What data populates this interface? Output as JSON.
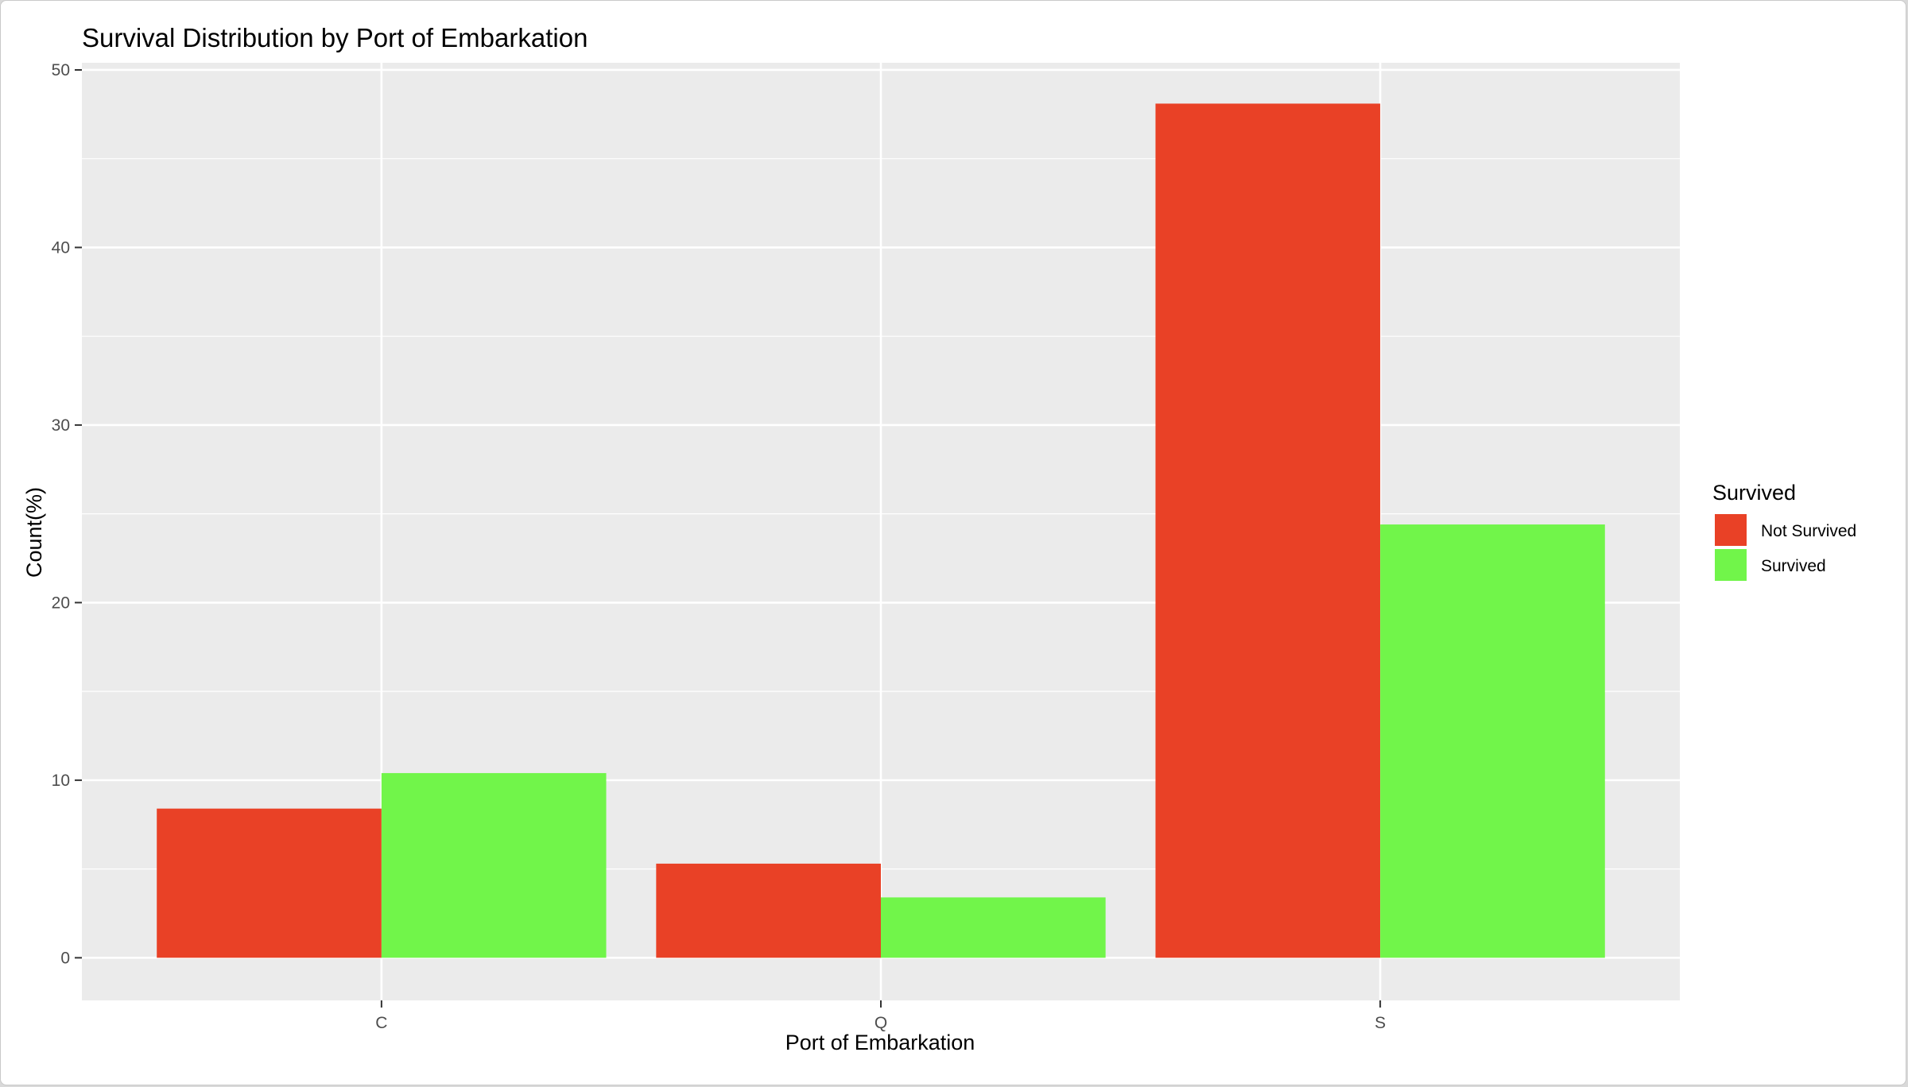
{
  "chart_data": {
    "type": "bar",
    "title": "Survival Distribution by Port of Embarkation",
    "xlabel": "Port of Embarkation",
    "ylabel": "Count(%)",
    "categories": [
      "C",
      "Q",
      "S"
    ],
    "series": [
      {
        "name": "Not Survived",
        "color": "#e94126",
        "values": [
          8.4,
          5.3,
          48.1
        ]
      },
      {
        "name": "Survived",
        "color": "#71f54a",
        "values": [
          10.4,
          3.4,
          24.4
        ]
      }
    ],
    "ylim": [
      -2.4,
      50.4
    ],
    "yticks": [
      0,
      10,
      20,
      30,
      40,
      50
    ],
    "ytick_labels": [
      "0",
      "10",
      "20",
      "30",
      "40",
      "50"
    ],
    "grid": true,
    "legend": {
      "title": "Survived",
      "placement": "right"
    },
    "colors": {
      "panel_background": "#ebebeb",
      "grid": "#ffffff",
      "tick": "#333333",
      "tick_label": "#4d4d4d"
    }
  }
}
